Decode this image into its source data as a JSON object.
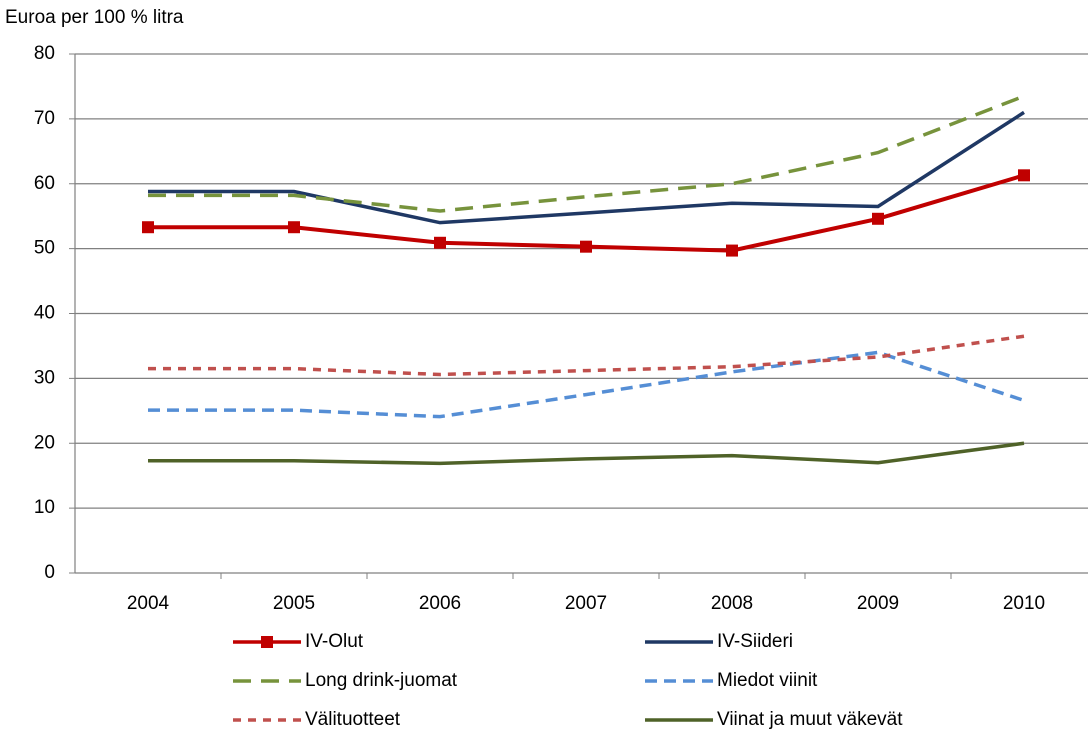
{
  "chart_data": {
    "type": "line",
    "y_label": "Euroa per 100 % litra",
    "categories": [
      "2004",
      "2005",
      "2006",
      "2007",
      "2008",
      "2009",
      "2010"
    ],
    "ylim": [
      0,
      80
    ],
    "yticks": [
      0,
      10,
      20,
      30,
      40,
      50,
      60,
      70,
      80
    ],
    "grid": true,
    "series": [
      {
        "name": "IV-Olut",
        "color": "#c00000",
        "style": "solid",
        "marker": "square",
        "values": [
          53.3,
          53.3,
          50.9,
          50.3,
          49.7,
          54.6,
          61.3
        ]
      },
      {
        "name": "IV-Siideri",
        "color": "#1f3864",
        "style": "solid",
        "values": [
          58.8,
          58.8,
          54.0,
          55.5,
          57.0,
          56.5,
          71.0
        ]
      },
      {
        "name": "Long drink-juomat",
        "color": "#77933c",
        "style": "long-dash",
        "values": [
          58.2,
          58.2,
          55.8,
          58.0,
          60.0,
          64.8,
          73.5
        ]
      },
      {
        "name": "Miedot viinit",
        "color": "#558ed5",
        "style": "dash",
        "values": [
          25.1,
          25.1,
          24.1,
          27.5,
          31.0,
          34.0,
          26.6
        ]
      },
      {
        "name": "Välituotteet",
        "color": "#c0504d",
        "style": "short-dash",
        "values": [
          31.5,
          31.5,
          30.6,
          31.2,
          31.8,
          33.3,
          36.5
        ]
      },
      {
        "name": "Viinat ja muut väkevät",
        "color": "#4f6228",
        "style": "solid",
        "values": [
          17.3,
          17.3,
          16.9,
          17.6,
          18.1,
          17.0,
          20.0
        ]
      }
    ]
  }
}
